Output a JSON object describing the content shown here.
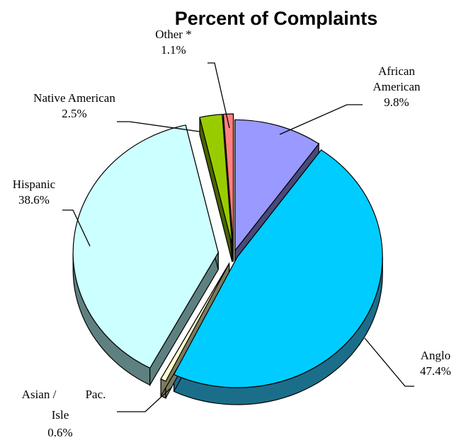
{
  "chart_data": {
    "type": "pie",
    "title": "Percent of Complaints",
    "slices": [
      {
        "label": "African American",
        "label_lines": [
          "African",
          "American"
        ],
        "value": 9.8,
        "value_label": "9.8%",
        "color": "#9999FF",
        "side_color": "#4A4A7A"
      },
      {
        "label": "Anglo",
        "label_lines": [
          "Anglo"
        ],
        "value": 47.4,
        "value_label": "47.4%",
        "color": "#00CCFF",
        "side_color": "#1B6E8A"
      },
      {
        "label": "Asian / Pac. Isle",
        "label_lines": [
          "Asian /",
          "Pac.",
          "Isle"
        ],
        "value": 0.6,
        "value_label": "0.6%",
        "color": "#FFFFCC",
        "side_color": "#7A7A60"
      },
      {
        "label": "Hispanic",
        "label_lines": [
          "Hispanic"
        ],
        "value": 38.6,
        "value_label": "38.6%",
        "color": "#CCFFFF",
        "side_color": "#5F8080"
      },
      {
        "label": "Native American",
        "label_lines": [
          "Native American"
        ],
        "value": 2.5,
        "value_label": "2.5%",
        "color": "#99CC00",
        "side_color": "#4A6400"
      },
      {
        "label": "Other *",
        "label_lines": [
          "Other *"
        ],
        "value": 1.1,
        "value_label": "1.1%",
        "color": "#FF8080",
        "side_color": "#803E3E"
      }
    ]
  }
}
